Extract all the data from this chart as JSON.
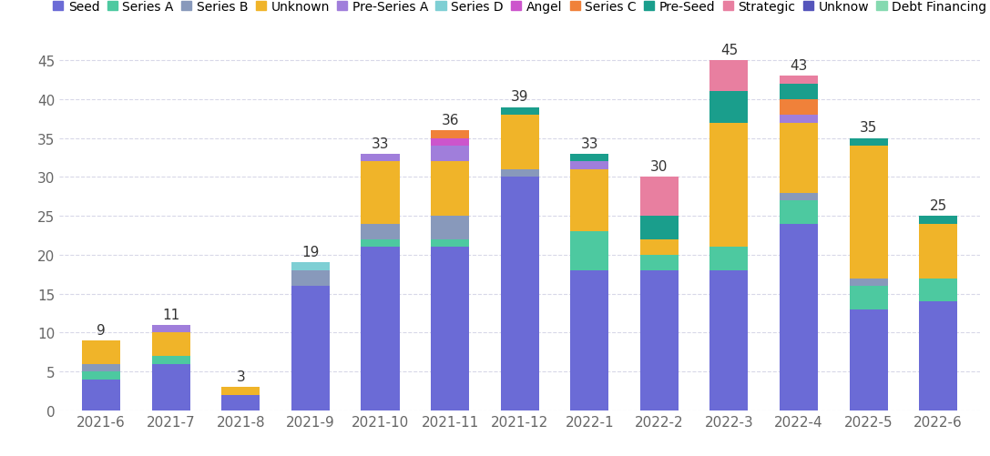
{
  "categories": [
    "2021-6",
    "2021-7",
    "2021-8",
    "2021-9",
    "2021-10",
    "2021-11",
    "2021-12",
    "2022-1",
    "2022-2",
    "2022-3",
    "2022-4",
    "2022-5",
    "2022-6"
  ],
  "totals": [
    9,
    11,
    3,
    19,
    33,
    36,
    39,
    33,
    30,
    45,
    43,
    35,
    25
  ],
  "series": {
    "Seed": {
      "color": "#6B6BD6",
      "values": [
        4,
        6,
        2,
        16,
        21,
        21,
        30,
        18,
        18,
        18,
        24,
        13,
        14
      ]
    },
    "Series A": {
      "color": "#4dc9a0",
      "values": [
        1,
        1,
        0,
        0,
        1,
        1,
        0,
        5,
        2,
        3,
        3,
        3,
        3
      ]
    },
    "Series B": {
      "color": "#8899bb",
      "values": [
        1,
        0,
        0,
        2,
        2,
        3,
        1,
        0,
        0,
        0,
        1,
        1,
        0
      ]
    },
    "Unknown": {
      "color": "#f0b429",
      "values": [
        3,
        3,
        1,
        0,
        8,
        7,
        7,
        8,
        2,
        16,
        9,
        17,
        7
      ]
    },
    "Pre-Series A": {
      "color": "#a07edb",
      "values": [
        0,
        1,
        0,
        0,
        1,
        2,
        0,
        1,
        0,
        0,
        1,
        0,
        0
      ]
    },
    "Series D": {
      "color": "#7ecfd4",
      "values": [
        0,
        0,
        0,
        1,
        0,
        0,
        0,
        0,
        0,
        0,
        0,
        0,
        0
      ]
    },
    "Angel": {
      "color": "#cc55cc",
      "values": [
        0,
        0,
        0,
        0,
        0,
        1,
        0,
        0,
        0,
        0,
        0,
        0,
        0
      ]
    },
    "Series C": {
      "color": "#f0813a",
      "values": [
        0,
        0,
        0,
        0,
        0,
        1,
        0,
        0,
        0,
        0,
        2,
        0,
        0
      ]
    },
    "Pre-Seed": {
      "color": "#1a9e8c",
      "values": [
        0,
        0,
        0,
        0,
        0,
        0,
        1,
        1,
        3,
        4,
        2,
        1,
        1
      ]
    },
    "Strategic": {
      "color": "#e87fa0",
      "values": [
        0,
        0,
        0,
        0,
        0,
        0,
        0,
        0,
        5,
        4,
        1,
        0,
        0
      ]
    },
    "Unknow": {
      "color": "#5555bb",
      "values": [
        0,
        0,
        0,
        0,
        0,
        0,
        0,
        0,
        0,
        0,
        0,
        0,
        0
      ]
    },
    "Debt Financing": {
      "color": "#85d9b0",
      "values": [
        0,
        0,
        0,
        0,
        0,
        0,
        0,
        0,
        0,
        0,
        0,
        0,
        0
      ]
    }
  },
  "series_order": [
    "Seed",
    "Series A",
    "Series B",
    "Unknown",
    "Pre-Series A",
    "Series D",
    "Angel",
    "Series C",
    "Pre-Seed",
    "Strategic",
    "Unknow",
    "Debt Financing"
  ],
  "legend_order": [
    "Seed",
    "Series A",
    "Series B",
    "Unknown",
    "Pre-Series A",
    "Series D",
    "Angel",
    "Series C",
    "Pre-Seed",
    "Strategic",
    "Unknow",
    "Debt Financing"
  ],
  "ylim": [
    0,
    47
  ],
  "yticks": [
    0,
    5,
    10,
    15,
    20,
    25,
    30,
    35,
    40,
    45
  ],
  "background_color": "#ffffff",
  "grid_color": "#d8d8e8",
  "total_fontsize": 11,
  "tick_fontsize": 11,
  "legend_fontsize": 10,
  "bar_width": 0.55
}
